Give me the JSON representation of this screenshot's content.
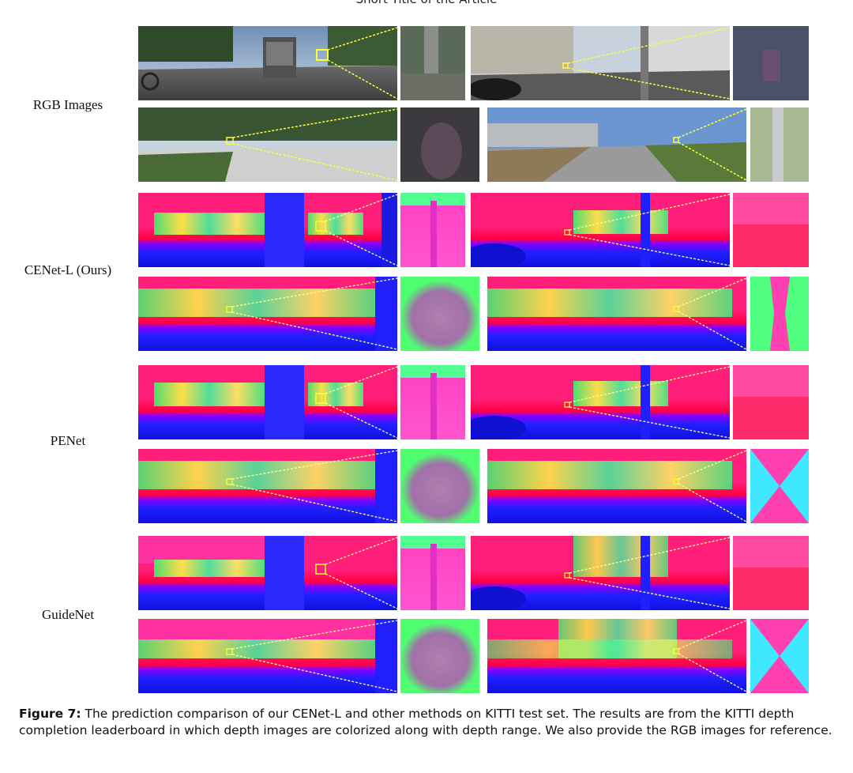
{
  "header": {
    "running_title": "Short Title of the Article"
  },
  "rows": [
    {
      "label": "RGB Images"
    },
    {
      "label": "CENet-L (Ours)"
    },
    {
      "label": "PENet"
    },
    {
      "label": "GuideNet"
    }
  ],
  "figure": {
    "number_label": "Figure 7:",
    "caption_text": "The prediction comparison of our CENet-L and other methods on KITTI test set. The results are from the KITTI depth completion leaderboard in which depth images are colorized along with depth range. We also provide the RGB images for reference."
  },
  "colors": {
    "zoom_box": "#ffff33",
    "depth_near": "#1a1aff",
    "depth_mid": "#ff2277",
    "depth_far": "#33ff88"
  }
}
